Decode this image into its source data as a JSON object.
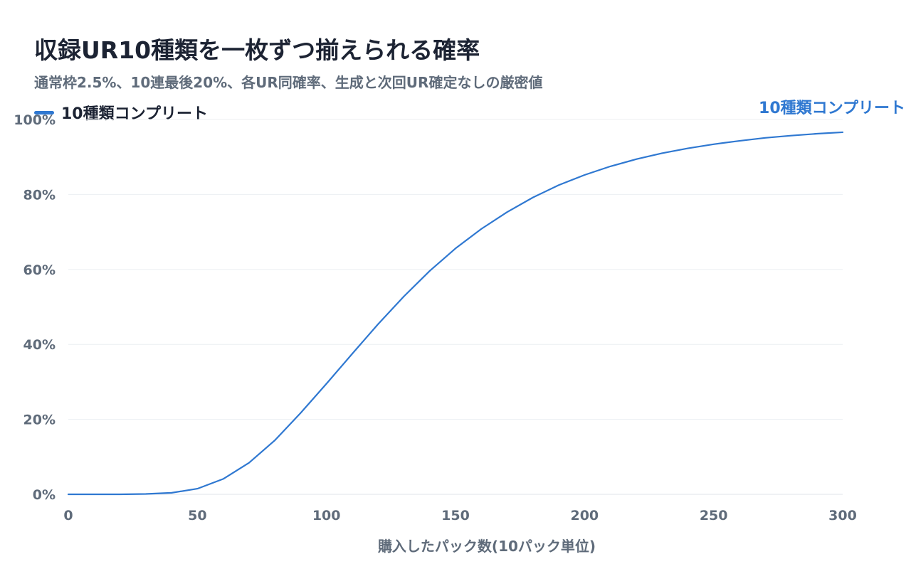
{
  "chart_data": {
    "type": "line",
    "title": "収録UR10種類を一枚ずつ揃えられる確率",
    "subtitle": "通常枠2.5%、10連最後20%、各UR同確率、生成と次回UR確定なしの厳密値",
    "xlabel": "購入したパック数(10パック単位)",
    "ylabel": "",
    "xlim": [
      0,
      300
    ],
    "ylim": [
      0,
      100
    ],
    "x_ticks": [
      0,
      50,
      100,
      150,
      200,
      250,
      300
    ],
    "x_tick_labels": [
      "0",
      "50",
      "100",
      "150",
      "200",
      "250",
      "300"
    ],
    "y_ticks": [
      0,
      20,
      40,
      60,
      80,
      100
    ],
    "y_tick_labels": [
      "0%",
      "20%",
      "40%",
      "60%",
      "80%",
      "100%"
    ],
    "grid": true,
    "legend_position": "top-left",
    "series": [
      {
        "name": "10種類コンプリート",
        "end_label": "10種類コンプリート",
        "color": "#2f78d1",
        "x": [
          0,
          10,
          20,
          30,
          40,
          50,
          60,
          70,
          80,
          90,
          100,
          110,
          120,
          130,
          140,
          150,
          160,
          170,
          180,
          190,
          200,
          210,
          220,
          230,
          240,
          250,
          260,
          270,
          280,
          290,
          300
        ],
        "y": [
          0,
          0,
          0,
          0.1,
          0.4,
          1.5,
          4.1,
          8.4,
          14.4,
          21.7,
          29.5,
          37.5,
          45.4,
          52.8,
          59.6,
          65.6,
          70.8,
          75.3,
          79.2,
          82.5,
          85.2,
          87.5,
          89.4,
          91.0,
          92.3,
          93.4,
          94.3,
          95.1,
          95.7,
          96.2,
          96.6
        ]
      }
    ]
  }
}
